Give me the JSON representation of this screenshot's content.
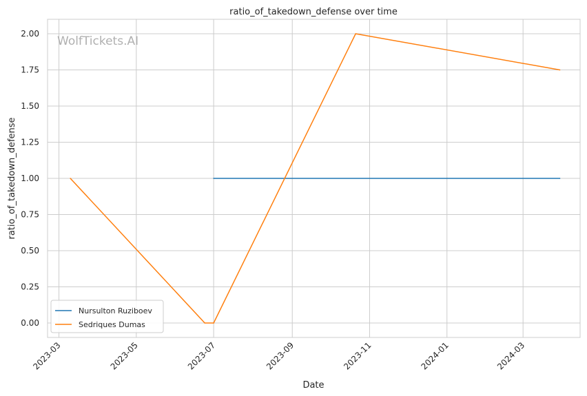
{
  "chart_data": {
    "type": "line",
    "title": "ratio_of_takedown_defense over time",
    "xlabel": "Date",
    "ylabel": "ratio_of_takedown_defense",
    "watermark": "WolfTickets.AI",
    "x_ticks": [
      "2023-03",
      "2023-05",
      "2023-07",
      "2023-09",
      "2023-11",
      "2024-01",
      "2024-03"
    ],
    "y_ticks": [
      "0.00",
      "0.25",
      "0.50",
      "0.75",
      "1.00",
      "1.25",
      "1.50",
      "1.75",
      "2.00"
    ],
    "ylim": [
      -0.1,
      2.1
    ],
    "xlim": [
      "2023-02-20",
      "2024-04-15"
    ],
    "grid": true,
    "legend_position": "lower-left",
    "series": [
      {
        "name": "Nursulton Ruziboev",
        "color": "#1f77b4",
        "points": [
          {
            "x": "2023-07-01",
            "y": 1.0
          },
          {
            "x": "2024-03-30",
            "y": 1.0
          }
        ]
      },
      {
        "name": "Sedriques Dumas",
        "color": "#ff7f0e",
        "points": [
          {
            "x": "2023-03-10",
            "y": 1.0
          },
          {
            "x": "2023-06-24",
            "y": 0.0
          },
          {
            "x": "2023-07-01",
            "y": 0.0
          },
          {
            "x": "2023-10-21",
            "y": 2.0
          },
          {
            "x": "2024-03-30",
            "y": 1.75
          }
        ]
      }
    ]
  }
}
